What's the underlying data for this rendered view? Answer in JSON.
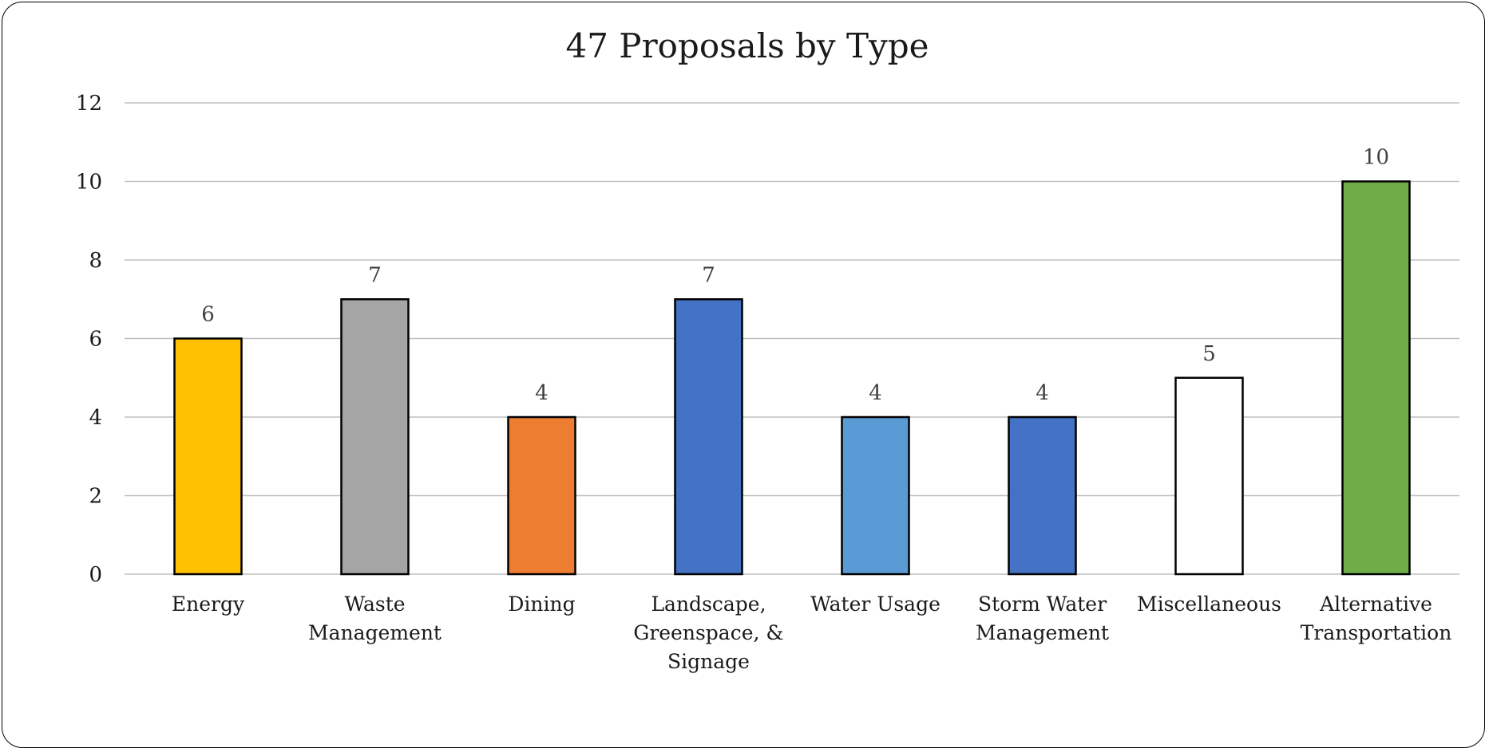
{
  "chart_data": {
    "type": "bar",
    "title": "47 Proposals by Type",
    "categories": [
      "Energy",
      "Waste Management",
      "Dining",
      "Landscape, Greenspace, & Signage",
      "Water Usage",
      "Storm Water Management",
      "Miscellaneous",
      "Alternative Transportation"
    ],
    "category_lines": [
      [
        "Energy"
      ],
      [
        "Waste",
        "Management"
      ],
      [
        "Dining"
      ],
      [
        "Landscape,",
        "Greenspace, &",
        "Signage"
      ],
      [
        "Water Usage"
      ],
      [
        "Storm Water",
        "Management"
      ],
      [
        "Miscellaneous"
      ],
      [
        "Alternative",
        "Transportation"
      ]
    ],
    "values": [
      6,
      7,
      4,
      7,
      4,
      4,
      5,
      10
    ],
    "bar_colors": [
      "#FFC000",
      "#A5A5A5",
      "#ED7D31",
      "#4472C4",
      "#5B9BD5",
      "#4472C4",
      "#FFFFFF",
      "#70AD47"
    ],
    "data_labels": [
      "6",
      "7",
      "4",
      "7",
      "4",
      "4",
      "5",
      "10"
    ],
    "ylim": [
      0,
      12
    ],
    "yticks": [
      0,
      2,
      4,
      6,
      8,
      10,
      12
    ],
    "ytick_labels": [
      "0",
      "2",
      "4",
      "6",
      "8",
      "10",
      "12"
    ],
    "grid": true,
    "legend": "none",
    "xlabel": "",
    "ylabel": "",
    "bar_outline_color": "#000000",
    "grid_color": "#BFBFBF"
  }
}
